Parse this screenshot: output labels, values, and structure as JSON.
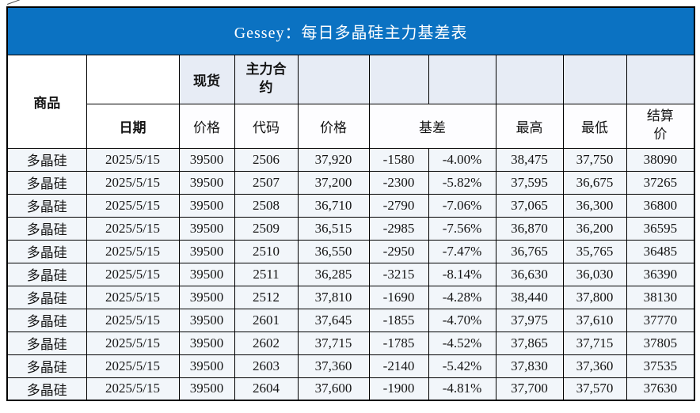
{
  "title": "Gessey：每日多晶硅主力基差表",
  "colors": {
    "title_bar": "#0b72c2",
    "header_fill": "#e7ecf5",
    "row_fill": "#f2f6fa",
    "basis_green": "#18b176",
    "commodity_blue": "#4444dd",
    "date_blue": "#5b76c8"
  },
  "table": {
    "header": {
      "commodity": "商品",
      "date": "日期",
      "spot": "现货",
      "main_contract": "主力合约",
      "spot_price": "价格",
      "code": "代码",
      "price": "价格",
      "basis": "基差",
      "high": "最高",
      "low": "最低",
      "settle": "结算价"
    },
    "rows": [
      {
        "commodity": "多晶硅",
        "date": "2025/5/15",
        "spot_price": "39500",
        "code": "2506",
        "price": "37,920",
        "basis": "-1580",
        "basis_pct": "-4.00%",
        "high": "38,475",
        "low": "37,750",
        "settle": "38090"
      },
      {
        "commodity": "多晶硅",
        "date": "2025/5/15",
        "spot_price": "39500",
        "code": "2507",
        "price": "37,200",
        "basis": "-2300",
        "basis_pct": "-5.82%",
        "high": "37,595",
        "low": "36,675",
        "settle": "37265"
      },
      {
        "commodity": "多晶硅",
        "date": "2025/5/15",
        "spot_price": "39500",
        "code": "2508",
        "price": "36,710",
        "basis": "-2790",
        "basis_pct": "-7.06%",
        "high": "37,065",
        "low": "36,300",
        "settle": "36800"
      },
      {
        "commodity": "多晶硅",
        "date": "2025/5/15",
        "spot_price": "39500",
        "code": "2509",
        "price": "36,515",
        "basis": "-2985",
        "basis_pct": "-7.56%",
        "high": "36,870",
        "low": "36,200",
        "settle": "36595"
      },
      {
        "commodity": "多晶硅",
        "date": "2025/5/15",
        "spot_price": "39500",
        "code": "2510",
        "price": "36,550",
        "basis": "-2950",
        "basis_pct": "-7.47%",
        "high": "36,765",
        "low": "35,765",
        "settle": "36485"
      },
      {
        "commodity": "多晶硅",
        "date": "2025/5/15",
        "spot_price": "39500",
        "code": "2511",
        "price": "36,285",
        "basis": "-3215",
        "basis_pct": "-8.14%",
        "high": "36,630",
        "low": "36,030",
        "settle": "36390"
      },
      {
        "commodity": "多晶硅",
        "date": "2025/5/15",
        "spot_price": "39500",
        "code": "2512",
        "price": "37,810",
        "basis": "-1690",
        "basis_pct": "-4.28%",
        "high": "38,440",
        "low": "37,800",
        "settle": "38130"
      },
      {
        "commodity": "多晶硅",
        "date": "2025/5/15",
        "spot_price": "39500",
        "code": "2601",
        "price": "37,645",
        "basis": "-1855",
        "basis_pct": "-4.70%",
        "high": "37,975",
        "low": "37,610",
        "settle": "37770"
      },
      {
        "commodity": "多晶硅",
        "date": "2025/5/15",
        "spot_price": "39500",
        "code": "2602",
        "price": "37,715",
        "basis": "-1785",
        "basis_pct": "-4.52%",
        "high": "37,865",
        "low": "37,715",
        "settle": "37805"
      },
      {
        "commodity": "多晶硅",
        "date": "2025/5/15",
        "spot_price": "39500",
        "code": "2603",
        "price": "37,360",
        "basis": "-2140",
        "basis_pct": "-5.42%",
        "high": "37,830",
        "low": "37,360",
        "settle": "37535"
      },
      {
        "commodity": "多晶硅",
        "date": "2025/5/15",
        "spot_price": "39500",
        "code": "2604",
        "price": "37,600",
        "basis": "-1900",
        "basis_pct": "-4.81%",
        "high": "37,700",
        "low": "37,570",
        "settle": "37630"
      }
    ]
  }
}
